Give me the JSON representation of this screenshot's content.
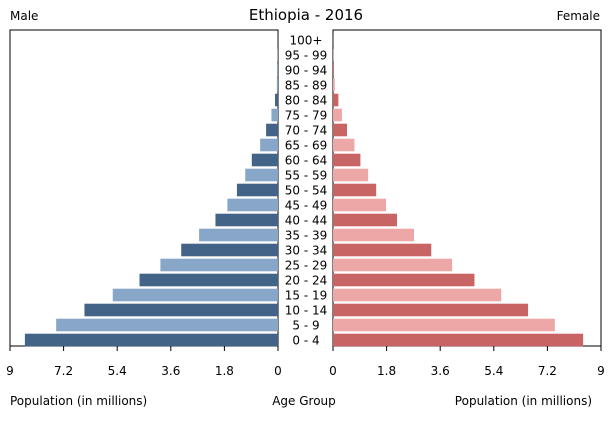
{
  "chart_data": {
    "type": "bar",
    "subtype": "population-pyramid",
    "title": "Ethiopia - 2016",
    "left_label": "Male",
    "right_label": "Female",
    "xlabel_left": "Population (in millions)",
    "xlabel_center": "Age Group",
    "xlabel_right": "Population (in millions)",
    "xlim": [
      0,
      9
    ],
    "ticks": [
      "9",
      "7.2",
      "5.4",
      "3.6",
      "1.8",
      "0"
    ],
    "tick_values": [
      9,
      7.2,
      5.4,
      3.6,
      1.8,
      0
    ],
    "right_ticks": [
      "0",
      "1.8",
      "3.6",
      "5.4",
      "7.2",
      "9"
    ],
    "categories": [
      "0 - 4",
      "5 - 9",
      "10 - 14",
      "15 - 19",
      "20 - 24",
      "25 - 29",
      "30 - 34",
      "35 - 39",
      "40 - 44",
      "45 - 49",
      "50 - 54",
      "55 - 59",
      "60 - 64",
      "65 - 69",
      "70 - 74",
      "75 - 79",
      "80 - 84",
      "85 - 89",
      "90 - 94",
      "95 - 99",
      "100+"
    ],
    "series": [
      {
        "name": "Male",
        "values": [
          8.5,
          7.45,
          6.5,
          5.55,
          4.65,
          3.95,
          3.25,
          2.65,
          2.1,
          1.7,
          1.38,
          1.1,
          0.88,
          0.6,
          0.4,
          0.22,
          0.1,
          0.04,
          0.02,
          0.01,
          0.005
        ]
      },
      {
        "name": "Female",
        "values": [
          8.4,
          7.45,
          6.55,
          5.65,
          4.75,
          4.0,
          3.3,
          2.72,
          2.15,
          1.78,
          1.45,
          1.18,
          0.92,
          0.72,
          0.47,
          0.3,
          0.18,
          0.06,
          0.03,
          0.01,
          0.005
        ]
      }
    ],
    "colors": {
      "male_dark": "#436486",
      "male_light": "#88a7c8",
      "female_dark": "#c86464",
      "female_light": "#eea7a7"
    },
    "grid": false,
    "legend": "none"
  }
}
